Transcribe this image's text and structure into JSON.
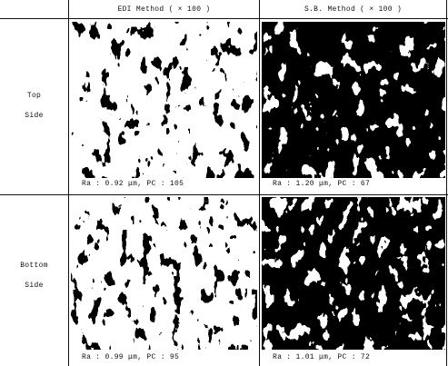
{
  "column_headers": [
    "EDI Method ( × 100 )",
    "S.B. Method ( × 100 )"
  ],
  "rows": [
    {
      "label": "Top Side",
      "captions": [
        "Ra : 0.92 μm, PC : 105",
        "Ra : 1.20 μm, PC : 67"
      ]
    },
    {
      "label": "Bottom Side",
      "captions": [
        "Ra : 0.99 μm, PC : 95",
        "Ra : 1.01 μm, PC : 72"
      ]
    }
  ]
}
